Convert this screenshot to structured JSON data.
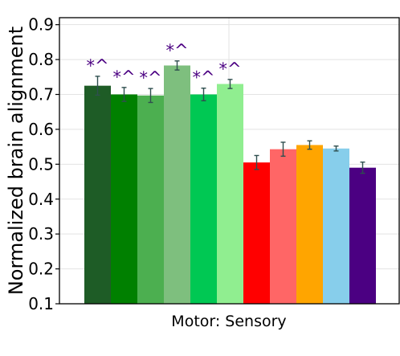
{
  "chart_data": {
    "type": "bar",
    "title": "",
    "xlabel": "Motor: Sensory",
    "ylabel": "Normalized brain alignment",
    "ylim": [
      0.1,
      0.92
    ],
    "yticks": [
      "0.1",
      "0.2",
      "0.3",
      "0.4",
      "0.5",
      "0.6",
      "0.7",
      "0.8",
      "0.9"
    ],
    "grid": true,
    "bars": [
      {
        "value": 0.725,
        "error": 0.027,
        "color": "#1e5c26",
        "annotation": "*^"
      },
      {
        "value": 0.7,
        "error": 0.02,
        "color": "#008000",
        "annotation": "*^"
      },
      {
        "value": 0.697,
        "error": 0.02,
        "color": "#4caf50",
        "annotation": "*^"
      },
      {
        "value": 0.783,
        "error": 0.013,
        "color": "#7ebf7e",
        "annotation": "*^"
      },
      {
        "value": 0.7,
        "error": 0.018,
        "color": "#00c853",
        "annotation": "*^"
      },
      {
        "value": 0.73,
        "error": 0.013,
        "color": "#90ee90",
        "annotation": "*^"
      },
      {
        "value": 0.505,
        "error": 0.02,
        "color": "#ff0000",
        "annotation": ""
      },
      {
        "value": 0.543,
        "error": 0.02,
        "color": "#ff6666",
        "annotation": ""
      },
      {
        "value": 0.555,
        "error": 0.012,
        "color": "#ffa500",
        "annotation": ""
      },
      {
        "value": 0.545,
        "error": 0.007,
        "color": "#87ceeb",
        "annotation": ""
      },
      {
        "value": 0.49,
        "error": 0.016,
        "color": "#4b0082",
        "annotation": ""
      }
    ],
    "annotation_color": "#4b0082",
    "errorbar_color": "#2f4f4f"
  }
}
